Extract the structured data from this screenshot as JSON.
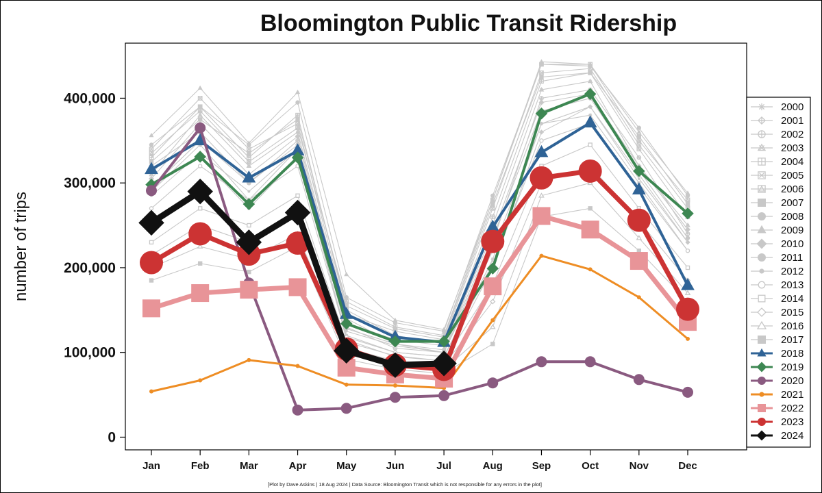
{
  "chart_data": {
    "type": "line",
    "title": "Bloomington Public Transit Ridership",
    "xlabel": "",
    "ylabel": "number of trips",
    "categories": [
      "Jan",
      "Feb",
      "Mar",
      "Apr",
      "May",
      "Jun",
      "Jul",
      "Aug",
      "Sep",
      "Oct",
      "Nov",
      "Dec"
    ],
    "ylim": [
      -15000,
      465000
    ],
    "yticks": [
      0,
      100000,
      200000,
      300000,
      400000
    ],
    "ytick_labels": [
      "0",
      "100,000",
      "200,000",
      "300,000",
      "400,000"
    ],
    "grid": false,
    "legend_position": "right",
    "background_color": "#ffffff",
    "series": [
      {
        "name": "2000",
        "color": "#c8c8c8",
        "marker": "asterisk",
        "emphasis": false,
        "values": [
          300000,
          330000,
          270000,
          330000,
          120000,
          100000,
          95000,
          210000,
          370000,
          380000,
          300000,
          220000
        ]
      },
      {
        "name": "2001",
        "color": "#c8c8c8",
        "marker": "diamond-plus",
        "emphasis": false,
        "values": [
          290000,
          345000,
          280000,
          340000,
          115000,
          95000,
          90000,
          200000,
          360000,
          390000,
          310000,
          230000
        ]
      },
      {
        "name": "2002",
        "color": "#c8c8c8",
        "marker": "circle-plus",
        "emphasis": false,
        "values": [
          320000,
          360000,
          300000,
          350000,
          130000,
          105000,
          100000,
          230000,
          400000,
          410000,
          330000,
          240000
        ]
      },
      {
        "name": "2003",
        "color": "#c8c8c8",
        "marker": "triangle-x",
        "emphasis": false,
        "values": [
          310000,
          380000,
          320000,
          360000,
          140000,
          110000,
          100000,
          250000,
          410000,
          420000,
          320000,
          250000
        ]
      },
      {
        "name": "2004",
        "color": "#c8c8c8",
        "marker": "square-plus",
        "emphasis": false,
        "values": [
          330000,
          390000,
          330000,
          380000,
          150000,
          120000,
          110000,
          260000,
          420000,
          430000,
          340000,
          260000
        ]
      },
      {
        "name": "2005",
        "color": "#c8c8c8",
        "marker": "square-x",
        "emphasis": false,
        "values": [
          340000,
          400000,
          340000,
          370000,
          145000,
          125000,
          115000,
          270000,
          430000,
          435000,
          345000,
          270000
        ]
      },
      {
        "name": "2006",
        "color": "#c8c8c8",
        "marker": "square-triangle",
        "emphasis": false,
        "values": [
          335000,
          385000,
          325000,
          365000,
          160000,
          130000,
          120000,
          280000,
          440000,
          440000,
          350000,
          280000
        ]
      },
      {
        "name": "2007",
        "color": "#c8c8c8",
        "marker": "square",
        "emphasis": false,
        "values": [
          325000,
          375000,
          335000,
          375000,
          155000,
          128000,
          118000,
          275000,
          425000,
          430000,
          355000,
          275000
        ]
      },
      {
        "name": "2008",
        "color": "#c8c8c8",
        "marker": "circle",
        "emphasis": false,
        "values": [
          345000,
          390000,
          345000,
          395000,
          165000,
          135000,
          125000,
          285000,
          440000,
          438000,
          365000,
          285000
        ]
      },
      {
        "name": "2009",
        "color": "#c8c8c8",
        "marker": "triangle",
        "emphasis": false,
        "values": [
          356000,
          412000,
          347000,
          407000,
          192000,
          138000,
          127000,
          280000,
          443000,
          440000,
          360000,
          288000
        ]
      },
      {
        "name": "2010",
        "color": "#c8c8c8",
        "marker": "diamond",
        "emphasis": false,
        "values": [
          305000,
          370000,
          310000,
          355000,
          135000,
          115000,
          108000,
          240000,
          395000,
          405000,
          320000,
          245000
        ]
      },
      {
        "name": "2011",
        "color": "#c8c8c8",
        "marker": "circle",
        "emphasis": false,
        "values": [
          295000,
          350000,
          300000,
          345000,
          128000,
          110000,
          103000,
          235000,
          385000,
          400000,
          315000,
          235000
        ]
      },
      {
        "name": "2012",
        "color": "#c8c8c8",
        "marker": "circle-small",
        "emphasis": false,
        "values": [
          285000,
          335000,
          290000,
          340000,
          125000,
          108000,
          100000,
          220000,
          370000,
          390000,
          305000,
          230000
        ]
      },
      {
        "name": "2013",
        "color": "#c8c8c8",
        "marker": "circle-open",
        "emphasis": false,
        "values": [
          270000,
          320000,
          280000,
          320000,
          118000,
          100000,
          95000,
          205000,
          350000,
          370000,
          295000,
          220000
        ]
      },
      {
        "name": "2014",
        "color": "#c8c8c8",
        "marker": "square-open",
        "emphasis": false,
        "values": [
          230000,
          270000,
          250000,
          285000,
          112000,
          96000,
          90000,
          180000,
          320000,
          345000,
          270000,
          200000
        ]
      },
      {
        "name": "2015",
        "color": "#c8c8c8",
        "marker": "diamond-open",
        "emphasis": false,
        "values": [
          215000,
          250000,
          230000,
          270000,
          105000,
          90000,
          85000,
          160000,
          300000,
          320000,
          255000,
          185000
        ]
      },
      {
        "name": "2016",
        "color": "#c8c8c8",
        "marker": "triangle-open",
        "emphasis": false,
        "values": [
          200000,
          225000,
          210000,
          240000,
          98000,
          85000,
          80000,
          130000,
          285000,
          300000,
          235000,
          170000
        ]
      },
      {
        "name": "2017",
        "color": "#c8c8c8",
        "marker": "square",
        "emphasis": false,
        "values": [
          185000,
          205000,
          195000,
          225000,
          92000,
          80000,
          75000,
          110000,
          260000,
          270000,
          220000,
          160000
        ]
      },
      {
        "name": "2018",
        "color": "#2f6396",
        "marker": "triangle",
        "emphasis": false,
        "values": [
          316000,
          350000,
          306000,
          338000,
          145000,
          118000,
          112000,
          248000,
          336000,
          371000,
          292000,
          179000
        ]
      },
      {
        "name": "2019",
        "color": "#3d8752",
        "marker": "diamond",
        "emphasis": false,
        "values": [
          298000,
          331000,
          275000,
          330000,
          134000,
          113000,
          113000,
          199000,
          382000,
          405000,
          314000,
          264000
        ]
      },
      {
        "name": "2020",
        "color": "#8a5a80",
        "marker": "circle",
        "emphasis": false,
        "values": [
          291000,
          365000,
          182000,
          32000,
          34000,
          47000,
          49000,
          64000,
          89000,
          89000,
          68000,
          53000
        ]
      },
      {
        "name": "2021",
        "color": "#ee8d24",
        "marker": "circle-small",
        "emphasis": false,
        "values": [
          54000,
          67000,
          91000,
          84000,
          62000,
          61000,
          58000,
          138000,
          214000,
          198000,
          165000,
          116000
        ]
      },
      {
        "name": "2022",
        "color": "#e89498",
        "marker": "square",
        "emphasis": false,
        "values": [
          152000,
          170000,
          174000,
          177000,
          82000,
          74000,
          69000,
          178000,
          261000,
          245000,
          208000,
          136000
        ]
      },
      {
        "name": "2023",
        "color": "#cc3333",
        "marker": "circle",
        "emphasis": false,
        "values": [
          206000,
          240000,
          216000,
          229000,
          104000,
          85000,
          80000,
          231000,
          306000,
          314000,
          256000,
          151000
        ]
      },
      {
        "name": "2024",
        "color": "#111111",
        "marker": "diamond",
        "emphasis": true,
        "values": [
          253000,
          290000,
          230000,
          265000,
          102000,
          85000,
          87000,
          null,
          null,
          null,
          null,
          null
        ]
      }
    ],
    "credit": "[Plot by Dave Askins | 18 Aug 2024 | Data Source: Bloomington Transit which is not responsible for any errors in the plot]"
  }
}
